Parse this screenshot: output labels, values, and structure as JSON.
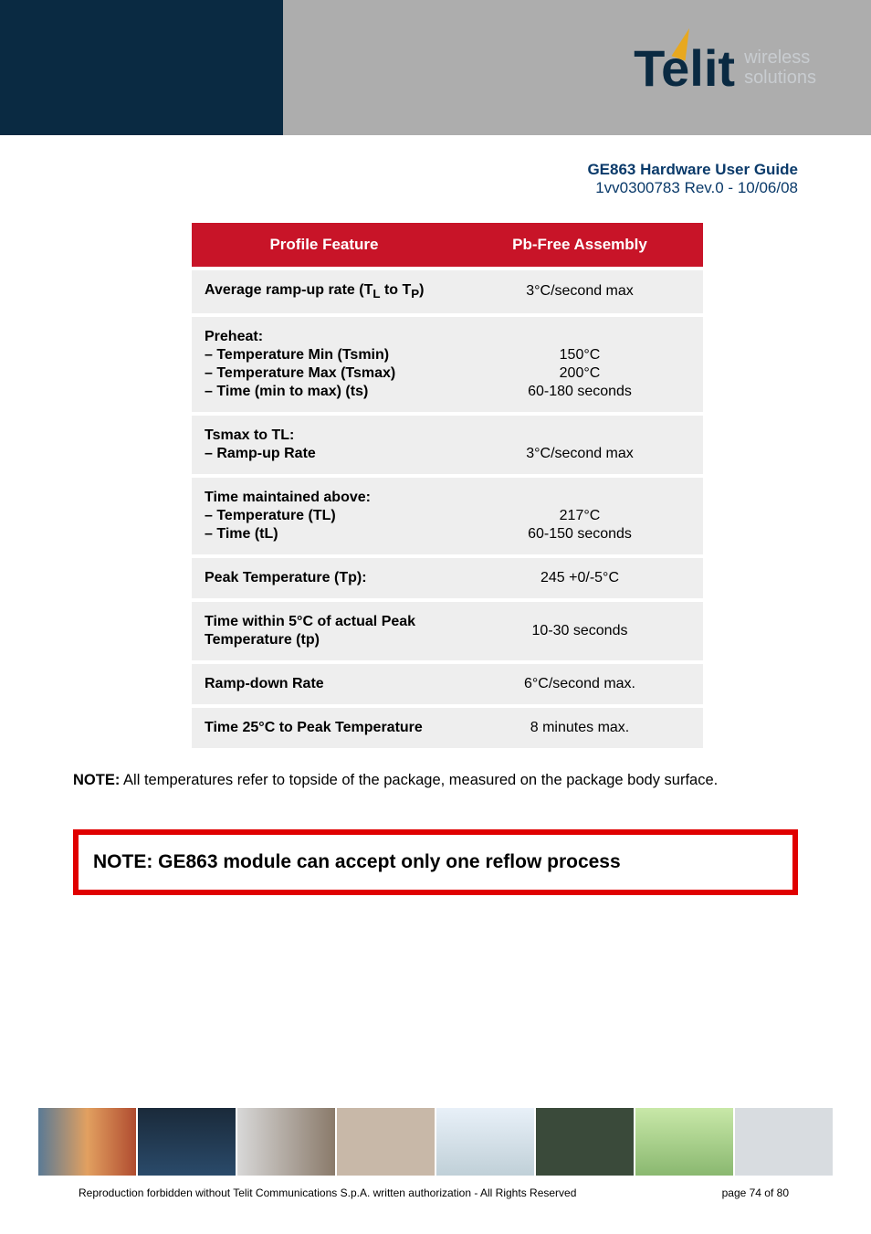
{
  "header": {
    "logo_main": "Telit",
    "logo_sub_1": "wireless",
    "logo_sub_2": "solutions",
    "colors": {
      "left_block": "#0a2a42",
      "right_block": "#adadad",
      "accent": "#e8a81f",
      "sub_text": "#c8ccd0"
    }
  },
  "doc": {
    "title": "GE863 Hardware User Guide",
    "subtitle": "1vv0300783 Rev.0 - 10/06/08",
    "title_color": "#0a3a6a"
  },
  "table": {
    "header_bg": "#c81428",
    "row_bg": "#eeeeee",
    "col_left": "Profile Feature",
    "col_right": "Pb-Free Assembly",
    "rows": [
      {
        "left_html": "Average ramp-up rate (T<sub>L</sub> to T<sub>P</sub>)",
        "right": "3°C/second max"
      },
      {
        "left_html": "Preheat:<br>– Temperature Min (Tsmin)<br>– Temperature Max (Tsmax)<br>– Time (min to max) (ts)",
        "right": "<br>150°C<br>200°C<br>60-180 seconds"
      },
      {
        "left_html": "Tsmax to TL:<br>– Ramp-up Rate",
        "right": "<br>3°C/second max"
      },
      {
        "left_html": "Time maintained above:<br>– Temperature (TL)<br>– Time (tL)",
        "right": "<br>217°C<br>60-150 seconds"
      },
      {
        "left_html": "Peak Temperature (Tp):",
        "right": "245 +0/-5°C"
      },
      {
        "left_html": "Time within 5°C of actual Peak Temperature (tp)",
        "right": "10-30 seconds"
      },
      {
        "left_html": "Ramp-down Rate",
        "right": "6°C/second max."
      },
      {
        "left_html": "Time 25°C to Peak Temperature",
        "right": "8 minutes max."
      }
    ]
  },
  "note_line": {
    "bold": "NOTE:",
    "text": " All temperatures refer to topside of the package, measured on the package body surface."
  },
  "warn_box": {
    "text": "NOTE: GE863 module can accept only one reflow process",
    "border_color": "#e00000"
  },
  "footer": {
    "copyright": "Reproduction forbidden without Telit Communications S.p.A. written authorization - All Rights Reserved",
    "page": "page 74 of 80"
  }
}
